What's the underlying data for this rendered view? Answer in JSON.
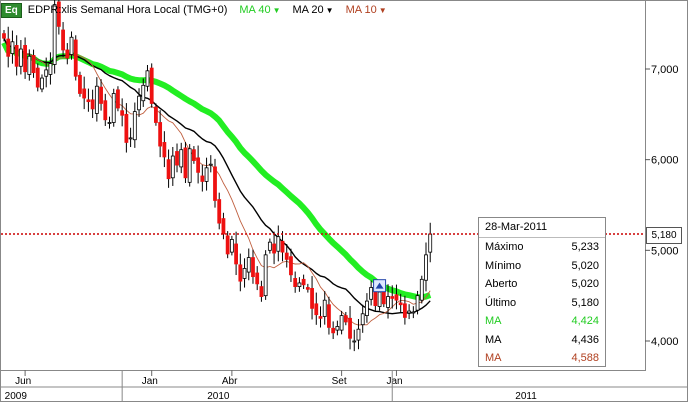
{
  "header": {
    "eq_badge": "Eq",
    "symbol_text": "EDPR:xlis Semanal Hora Local (TMG+0)",
    "ma_labels": [
      {
        "label": "MA 40",
        "color": "#22cc22"
      },
      {
        "label": "MA 20",
        "color": "#000000"
      },
      {
        "label": "MA 10",
        "color": "#b04020"
      }
    ]
  },
  "info_panel": {
    "date": "28-Mar-2011",
    "rows": [
      {
        "label": "Máximo",
        "value": "5,233",
        "color": "#000000"
      },
      {
        "label": "Mínimo",
        "value": "5,020",
        "color": "#000000"
      },
      {
        "label": "Aberto",
        "value": "5,020",
        "color": "#000000"
      },
      {
        "label": "Último",
        "value": "5,180",
        "color": "#000000"
      },
      {
        "label": "MA",
        "value": "4,424",
        "color": "#22cc22"
      },
      {
        "label": "MA",
        "value": "4,436",
        "color": "#000000"
      },
      {
        "label": "MA",
        "value": "4,588",
        "color": "#b04020"
      }
    ]
  },
  "last_price_tag": "5,180",
  "colors": {
    "up": "#ffffff",
    "down": "#ee1111",
    "ma40": "#22ee22",
    "ma20": "#000000",
    "ma10": "#c06040",
    "priceline": "#cc0000"
  },
  "chart_data": {
    "type": "candlestick",
    "y_ticks": [
      "7,000",
      "6,000",
      "5,000",
      "4,000"
    ],
    "y_tick_values": [
      7.0,
      6.0,
      5.0,
      4.0
    ],
    "ylim": [
      3.68,
      7.75
    ],
    "x_month_labels": [
      "Jun",
      "Jan",
      "Abr",
      "Set",
      "Jan"
    ],
    "x_month_index": [
      5,
      35,
      54,
      80,
      93
    ],
    "x_year_labels": [
      "2009",
      "2010",
      "2011"
    ],
    "x_year_index": [
      3,
      51,
      124
    ],
    "x_year_dividers": [
      28,
      92
    ],
    "last_price": 5.18,
    "closes": [
      7.34,
      7.14,
      7.3,
      7.03,
      7.22,
      6.97,
      7.14,
      6.96,
      6.8,
      6.9,
      6.99,
      7.06,
      7.71,
      7.47,
      7.21,
      7.12,
      7.35,
      6.92,
      6.73,
      6.68,
      6.64,
      6.56,
      6.81,
      6.62,
      6.44,
      6.41,
      6.73,
      6.57,
      6.49,
      6.19,
      6.24,
      6.53,
      6.7,
      6.82,
      6.98,
      6.62,
      6.41,
      6.15,
      6.03,
      5.79,
      6.04,
      5.94,
      6.11,
      5.8,
      6.12,
      5.99,
      5.86,
      5.76,
      5.91,
      5.95,
      5.55,
      5.3,
      5.18,
      4.96,
      5.12,
      4.85,
      4.66,
      4.8,
      4.92,
      4.71,
      4.63,
      4.49,
      4.95,
      5.09,
      4.97,
      5.15,
      4.98,
      4.9,
      4.73,
      4.6,
      4.64,
      4.62,
      4.57,
      4.36,
      4.29,
      4.25,
      4.45,
      4.15,
      4.09,
      4.16,
      4.28,
      4.21,
      4.03,
      4.0,
      4.13,
      4.3,
      4.44,
      4.59,
      4.39,
      4.54,
      4.41,
      4.49,
      4.47,
      4.45,
      4.4,
      4.26,
      4.33,
      4.32,
      4.5,
      4.68,
      4.95,
      5.18
    ]
  }
}
